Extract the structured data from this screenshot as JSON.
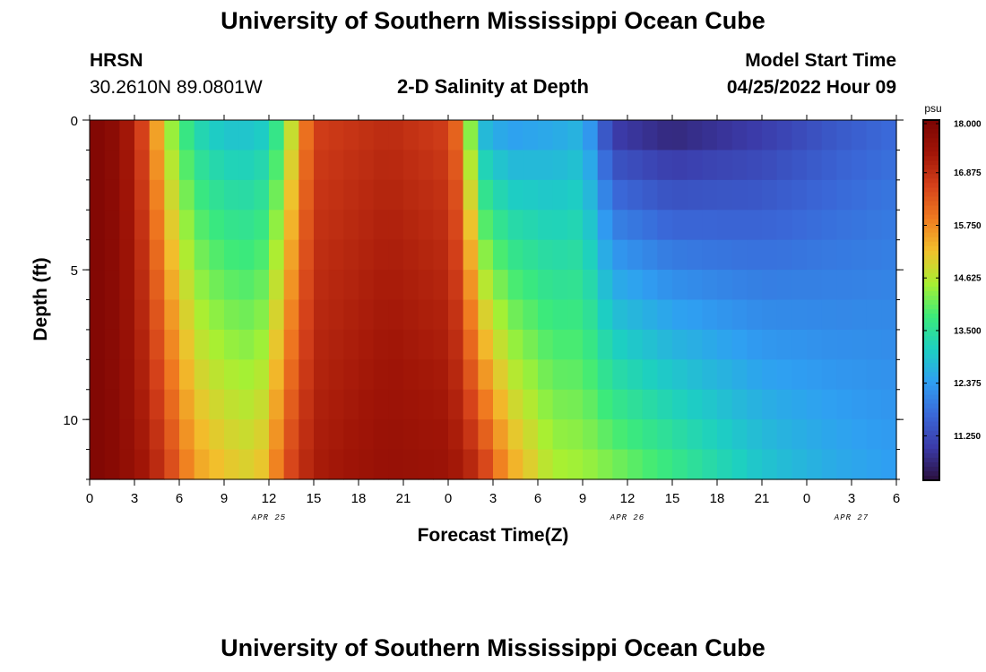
{
  "page": {
    "title_top": "University of Southern Mississippi Ocean Cube",
    "title_bottom": "University of Southern Mississippi Ocean Cube"
  },
  "station": {
    "id": "HRSN",
    "coords": "30.2610N  89.0801W"
  },
  "model": {
    "label": "Model Start Time",
    "start": "04/25/2022 Hour 09"
  },
  "colors": {
    "background": "#ffffff",
    "text": "#000000",
    "palette_stops": [
      "#2a0f3d",
      "#3b3aa8",
      "#3a68d8",
      "#2f9ff2",
      "#1dcfc2",
      "#3cea7a",
      "#a8f032",
      "#f2c02c",
      "#f07a20",
      "#d4401a",
      "#a01507",
      "#7a0403"
    ]
  },
  "chart_data": {
    "type": "heatmap",
    "title": "2-D Salinity at Depth",
    "xlabel": "Forecast Time(Z)",
    "ylabel": "Depth (ft)",
    "x_hours_range": [
      0,
      54
    ],
    "x_tick_step_hours": 3,
    "x_tick_labels": [
      "0",
      "3",
      "6",
      "9",
      "12",
      "15",
      "18",
      "21",
      "0",
      "3",
      "6",
      "9",
      "12",
      "15",
      "18",
      "21",
      "0",
      "3",
      "6"
    ],
    "date_labels": [
      {
        "hour": 12,
        "text": "APR 25"
      },
      {
        "hour": 36,
        "text": "APR 26"
      },
      {
        "hour": 51,
        "text": "APR 27"
      }
    ],
    "y_range_ft": [
      0,
      12
    ],
    "y_major_ticks": [
      0,
      5,
      10
    ],
    "y_tick_labels": [
      "0",
      "5",
      "10"
    ],
    "y_minor_step_ft": 1,
    "colorbar": {
      "unit": "psu",
      "min": 10.3,
      "max": 18.0,
      "tick_values": [
        18.0,
        16.875,
        15.75,
        14.625,
        13.5,
        12.375,
        11.25
      ],
      "tick_labels": [
        "18.000",
        "16.875",
        "15.750",
        "14.625",
        "13.500",
        "12.375",
        "11.250"
      ]
    },
    "grid_cols": 54,
    "grid_rows": 12,
    "salinity_profiles": [
      {
        "hour": 0,
        "top": 17.9,
        "bottom": 17.9
      },
      {
        "hour": 2,
        "top": 17.6,
        "bottom": 17.7
      },
      {
        "hour": 4,
        "top": 16.2,
        "bottom": 17.2
      },
      {
        "hour": 5,
        "top": 14.6,
        "bottom": 16.8
      },
      {
        "hour": 7,
        "top": 13.2,
        "bottom": 15.6
      },
      {
        "hour": 9,
        "top": 12.8,
        "bottom": 15.2
      },
      {
        "hour": 11,
        "top": 12.8,
        "bottom": 15.0
      },
      {
        "hour": 12,
        "top": 13.0,
        "bottom": 15.4
      },
      {
        "hour": 13,
        "top": 14.0,
        "bottom": 16.4
      },
      {
        "hour": 15,
        "top": 16.6,
        "bottom": 17.2
      },
      {
        "hour": 20,
        "top": 16.9,
        "bottom": 17.5
      },
      {
        "hour": 24,
        "top": 16.6,
        "bottom": 17.4
      },
      {
        "hour": 25,
        "top": 15.6,
        "bottom": 17.2
      },
      {
        "hour": 26,
        "top": 12.6,
        "bottom": 17.0
      },
      {
        "hour": 28,
        "top": 12.2,
        "bottom": 15.6
      },
      {
        "hour": 31,
        "top": 12.4,
        "bottom": 14.6
      },
      {
        "hour": 33,
        "top": 12.6,
        "bottom": 14.5
      },
      {
        "hour": 35,
        "top": 10.8,
        "bottom": 14.3
      },
      {
        "hour": 39,
        "top": 10.5,
        "bottom": 13.8
      },
      {
        "hour": 45,
        "top": 10.9,
        "bottom": 13.0
      },
      {
        "hour": 50,
        "top": 11.4,
        "bottom": 12.6
      },
      {
        "hour": 54,
        "top": 11.7,
        "bottom": 12.4
      }
    ]
  }
}
